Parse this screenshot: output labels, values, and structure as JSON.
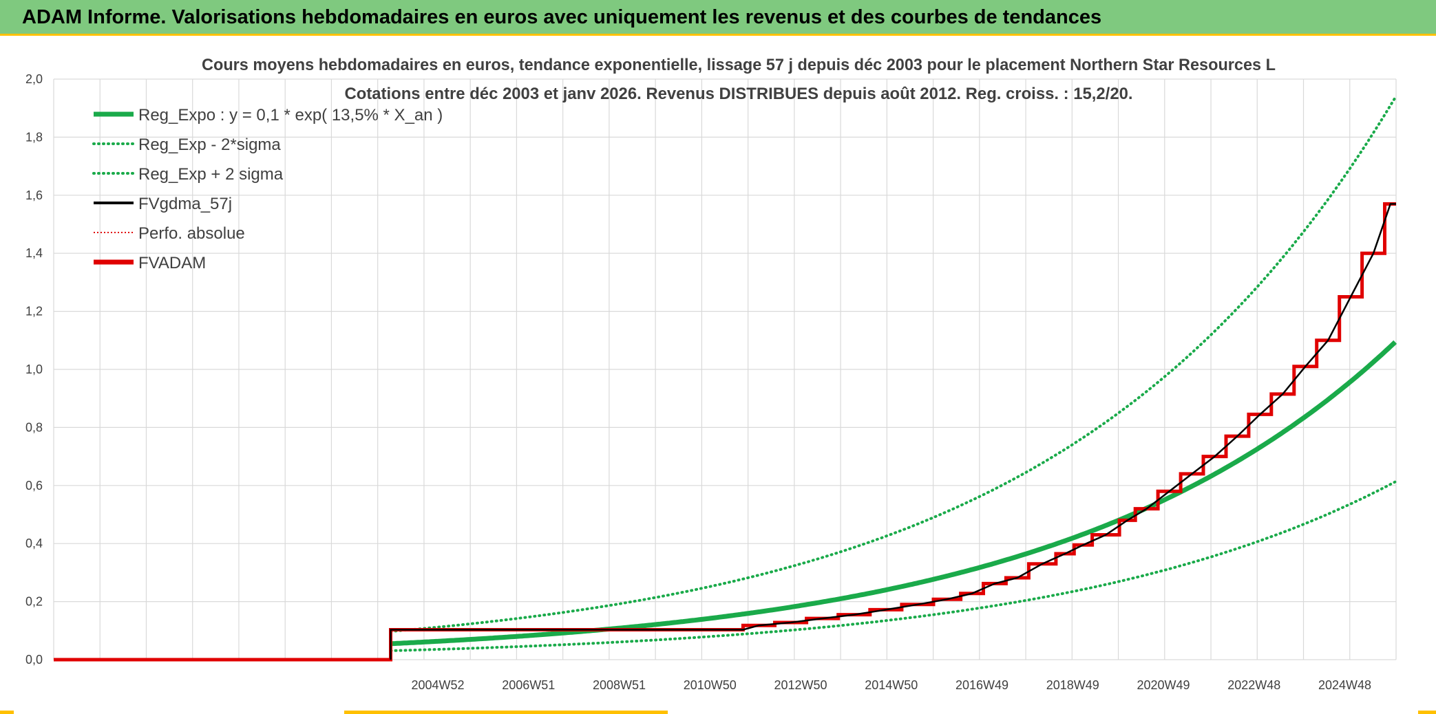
{
  "banner": {
    "title": "ADAM Informe. Valorisations hebdomadaires en euros avec uniquement les revenus et des courbes de tendances"
  },
  "colors": {
    "banner_bg": "#7fc97f",
    "accent": "#ffc000",
    "reg_expo": "#1aaa4a",
    "fvgdma": "#000000",
    "perfo": "#e00000",
    "fvadam": "#e00000",
    "grid": "#d9d9d9"
  },
  "chart_data": {
    "type": "line",
    "title_line1": "Cours moyens hebdomadaires en euros, tendance exponentielle, lissage 57 j depuis déc 2003 pour le placement Northern Star Resources L",
    "title_line2": "Cotations entre déc 2003 et janv 2026. Revenus DISTRIBUES depuis août 2012. Reg. croiss. : 15,2/20.",
    "ylim": [
      0,
      2.0
    ],
    "yticks": [
      "0,0",
      "0,2",
      "0,4",
      "0,6",
      "0,8",
      "1,0",
      "1,2",
      "1,4",
      "1,6",
      "1,8",
      "2,0"
    ],
    "xticks": [
      "2004W52",
      "2006W51",
      "2008W51",
      "2010W50",
      "2012W50",
      "2014W50",
      "2016W49",
      "2018W49",
      "2020W49",
      "2022W48",
      "2024W48"
    ],
    "grid": true,
    "legend_position": "top-left",
    "legend": [
      {
        "label": "Reg_Expo : y = 0,1 * exp( 13,5% *  X_an )",
        "style": "solid-thick",
        "color": "#1aaa4a"
      },
      {
        "label": "Reg_Exp - 2*sigma",
        "style": "dotted",
        "color": "#1aaa4a"
      },
      {
        "label": "Reg_Exp + 2 sigma",
        "style": "dotted",
        "color": "#1aaa4a"
      },
      {
        "label": "FVgdma_57j",
        "style": "solid",
        "color": "#000000"
      },
      {
        "label": "Perfo. absolue",
        "style": "dotted-thin",
        "color": "#e00000"
      },
      {
        "label": "FVADAM",
        "style": "solid-thick",
        "color": "#e00000"
      }
    ],
    "x_range": [
      1996.5,
      2026.1
    ],
    "data_start": 2003.93,
    "reg_expo": {
      "a": 0.055,
      "r": 0.135
    },
    "lower_factor": 0.56,
    "upper_factor": 1.77,
    "fvadam_flat": [
      [
        1996.5,
        0.0
      ],
      [
        2003.93,
        0.0
      ],
      [
        2003.93,
        0.103
      ],
      [
        2011.7,
        0.103
      ]
    ],
    "fvadam_steps": [
      {
        "x": 2011.7,
        "y": 0.118
      },
      {
        "x": 2012.4,
        "y": 0.128
      },
      {
        "x": 2013.1,
        "y": 0.142
      },
      {
        "x": 2013.8,
        "y": 0.155
      },
      {
        "x": 2014.5,
        "y": 0.172
      },
      {
        "x": 2015.2,
        "y": 0.19
      },
      {
        "x": 2015.9,
        "y": 0.208
      },
      {
        "x": 2016.5,
        "y": 0.228
      },
      {
        "x": 2017.0,
        "y": 0.262
      },
      {
        "x": 2017.5,
        "y": 0.282
      },
      {
        "x": 2018.0,
        "y": 0.33
      },
      {
        "x": 2018.6,
        "y": 0.365
      },
      {
        "x": 2019.0,
        "y": 0.395
      },
      {
        "x": 2019.4,
        "y": 0.43
      },
      {
        "x": 2020.0,
        "y": 0.48
      },
      {
        "x": 2020.35,
        "y": 0.52
      },
      {
        "x": 2020.85,
        "y": 0.58
      },
      {
        "x": 2021.35,
        "y": 0.64
      },
      {
        "x": 2021.85,
        "y": 0.7
      },
      {
        "x": 2022.35,
        "y": 0.77
      },
      {
        "x": 2022.85,
        "y": 0.845
      },
      {
        "x": 2023.35,
        "y": 0.915
      },
      {
        "x": 2023.85,
        "y": 1.01
      },
      {
        "x": 2024.35,
        "y": 1.1
      },
      {
        "x": 2024.85,
        "y": 1.25
      },
      {
        "x": 2025.35,
        "y": 1.4
      },
      {
        "x": 2025.85,
        "y": 1.57
      },
      {
        "x": 2026.1,
        "y": 1.57
      }
    ]
  }
}
